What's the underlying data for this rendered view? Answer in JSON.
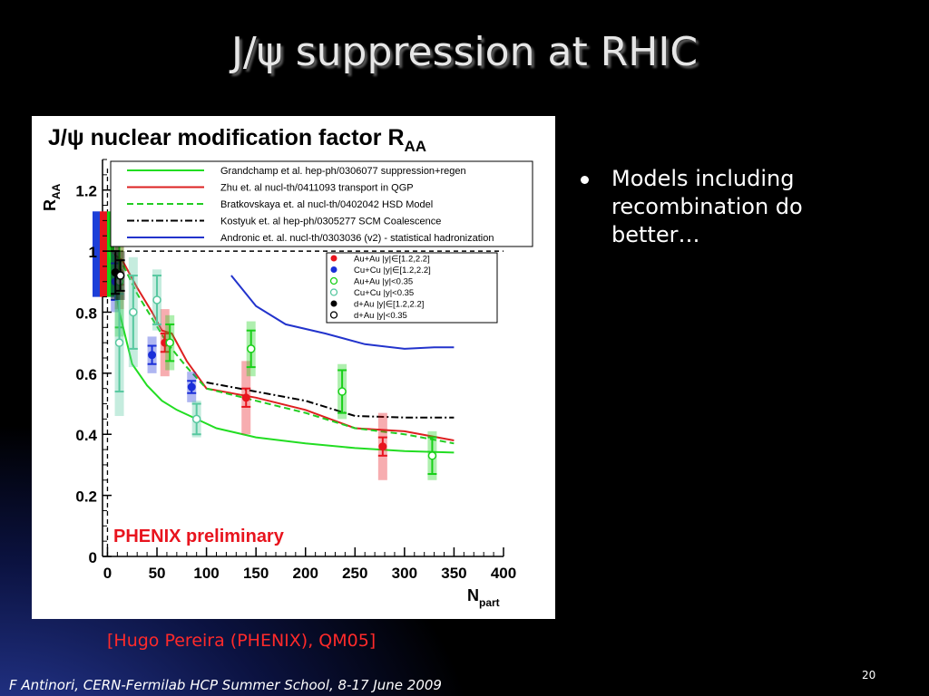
{
  "slide": {
    "title": "J/ψ suppression at RHIC",
    "bullet": "Models including recombination do better…",
    "reference": "[Hugo Pereira (PHENIX), QM05]",
    "footer": "F Antinori, CERN-Fermilab HCP Summer School, 8-17 June 2009",
    "page_number": "20"
  },
  "chart_data": {
    "type": "scatter",
    "title": "J/ψ nuclear modification factor R",
    "title_subscript": "AA",
    "ylabel": "R",
    "ylabel_subscript": "AA",
    "xlabel": "N",
    "xlabel_subscript": "part",
    "xlim": [
      -5,
      400
    ],
    "ylim": [
      0,
      1.3
    ],
    "x_ticks": [
      0,
      50,
      100,
      150,
      200,
      250,
      300,
      350,
      400
    ],
    "y_ticks": [
      0,
      0.2,
      0.4,
      0.6,
      0.8,
      1,
      1.2
    ],
    "y_tick_labels": [
      "0",
      "0.2",
      "0.4",
      "0.6",
      "0.8",
      "1",
      "1.2"
    ],
    "reference_line_y": 1,
    "reference_line_x": 0,
    "annotation": "PHENIX preliminary",
    "colors": {
      "red": "#e8141e",
      "blue": "#1a2ed8",
      "green": "#18d018",
      "lightgreen": "#58c8a0",
      "black": "#000000",
      "model_blue": "#2233cc"
    },
    "models": [
      {
        "name": "Grandchamp et al. hep-ph/0306077 suppression+regen",
        "color": "#22dd22",
        "dash": "solid",
        "x": [
          2,
          12,
          25,
          40,
          55,
          70,
          90,
          110,
          150,
          200,
          250,
          300,
          350
        ],
        "y": [
          1.0,
          0.8,
          0.63,
          0.56,
          0.51,
          0.48,
          0.45,
          0.42,
          0.39,
          0.37,
          0.355,
          0.345,
          0.34
        ]
      },
      {
        "name": "Zhu et. al nucl-th/0411093 transport in QGP",
        "color": "#dd2020",
        "dash": "solid",
        "x": [
          2,
          15,
          30,
          45,
          55,
          65,
          80,
          100,
          150,
          200,
          250,
          300,
          350
        ],
        "y": [
          1.0,
          0.97,
          0.88,
          0.8,
          0.74,
          0.73,
          0.64,
          0.55,
          0.52,
          0.48,
          0.42,
          0.41,
          0.38
        ]
      },
      {
        "name": "Bratkovskaya et. al nucl-th/0402042 HSD Model",
        "color": "#22cc22",
        "dash": "dashed",
        "x": [
          2,
          15,
          30,
          45,
          60,
          80,
          100,
          150,
          200,
          250,
          300,
          350
        ],
        "y": [
          1.0,
          0.96,
          0.86,
          0.78,
          0.7,
          0.62,
          0.55,
          0.51,
          0.47,
          0.42,
          0.4,
          0.37
        ]
      },
      {
        "name": "Kostyuk et. al hep-ph/0305277 SCM Coalescence",
        "color": "#000000",
        "dash": "dashdot",
        "x": [
          100,
          150,
          200,
          250,
          300,
          350
        ],
        "y": [
          0.57,
          0.54,
          0.51,
          0.46,
          0.455,
          0.455
        ]
      },
      {
        "name": "Andronic et. al. nucl-th/0303036 (v2) - statistical hadronization",
        "color": "#2233cc",
        "dash": "solid",
        "x": [
          125,
          150,
          180,
          220,
          260,
          300,
          330,
          350
        ],
        "y": [
          0.92,
          0.82,
          0.76,
          0.73,
          0.695,
          0.68,
          0.685,
          0.685
        ]
      }
    ],
    "series": [
      {
        "name": "Au+Au |y|∈[1.2,2.2]",
        "color": "#e8141e",
        "marker": "filled",
        "x": [
          12,
          58,
          140,
          278
        ],
        "y": [
          0.93,
          0.7,
          0.52,
          0.36
        ],
        "err": [
          0.04,
          0.03,
          0.03,
          0.03
        ],
        "syst": [
          0.12,
          0.11,
          0.12,
          0.11
        ]
      },
      {
        "name": "Cu+Cu |y|∈[1.2,2.2]",
        "color": "#1a2ed8",
        "marker": "filled",
        "x": [
          8,
          45,
          85
        ],
        "y": [
          0.9,
          0.66,
          0.555
        ],
        "err": [
          0.06,
          0.03,
          0.02
        ],
        "syst": [
          0.1,
          0.06,
          0.05
        ]
      },
      {
        "name": "Au+Au |y|<0.35",
        "color": "#18d018",
        "marker": "open",
        "x": [
          12,
          63,
          145,
          237,
          328
        ],
        "y": [
          0.9,
          0.7,
          0.68,
          0.54,
          0.33
        ],
        "err": [
          0.15,
          0.06,
          0.06,
          0.07,
          0.06
        ],
        "syst": [
          0.18,
          0.09,
          0.09,
          0.09,
          0.08
        ]
      },
      {
        "name": "Cu+Cu |y|<0.35",
        "color": "#58c8a0",
        "marker": "open",
        "x": [
          12,
          26,
          50,
          90
        ],
        "y": [
          0.7,
          0.8,
          0.84,
          0.45
        ],
        "err": [
          0.16,
          0.12,
          0.08,
          0.05
        ],
        "syst": [
          0.24,
          0.18,
          0.1,
          0.06
        ]
      },
      {
        "name": "d+Au |y|∈[1.2,2.2]",
        "color": "#000000",
        "marker": "filled",
        "x": [
          8
        ],
        "y": [
          0.93
        ],
        "err": [
          0.07
        ],
        "syst": [
          0.09
        ]
      },
      {
        "name": "d+Au |y|<0.35",
        "color": "#000000",
        "marker": "open",
        "x": [
          13
        ],
        "y": [
          0.92
        ],
        "err": [
          0.05
        ],
        "syst": [
          0.08
        ]
      }
    ],
    "pp_band_colors": [
      "#1d3fd8",
      "#e8141e",
      "#18d018"
    ]
  }
}
